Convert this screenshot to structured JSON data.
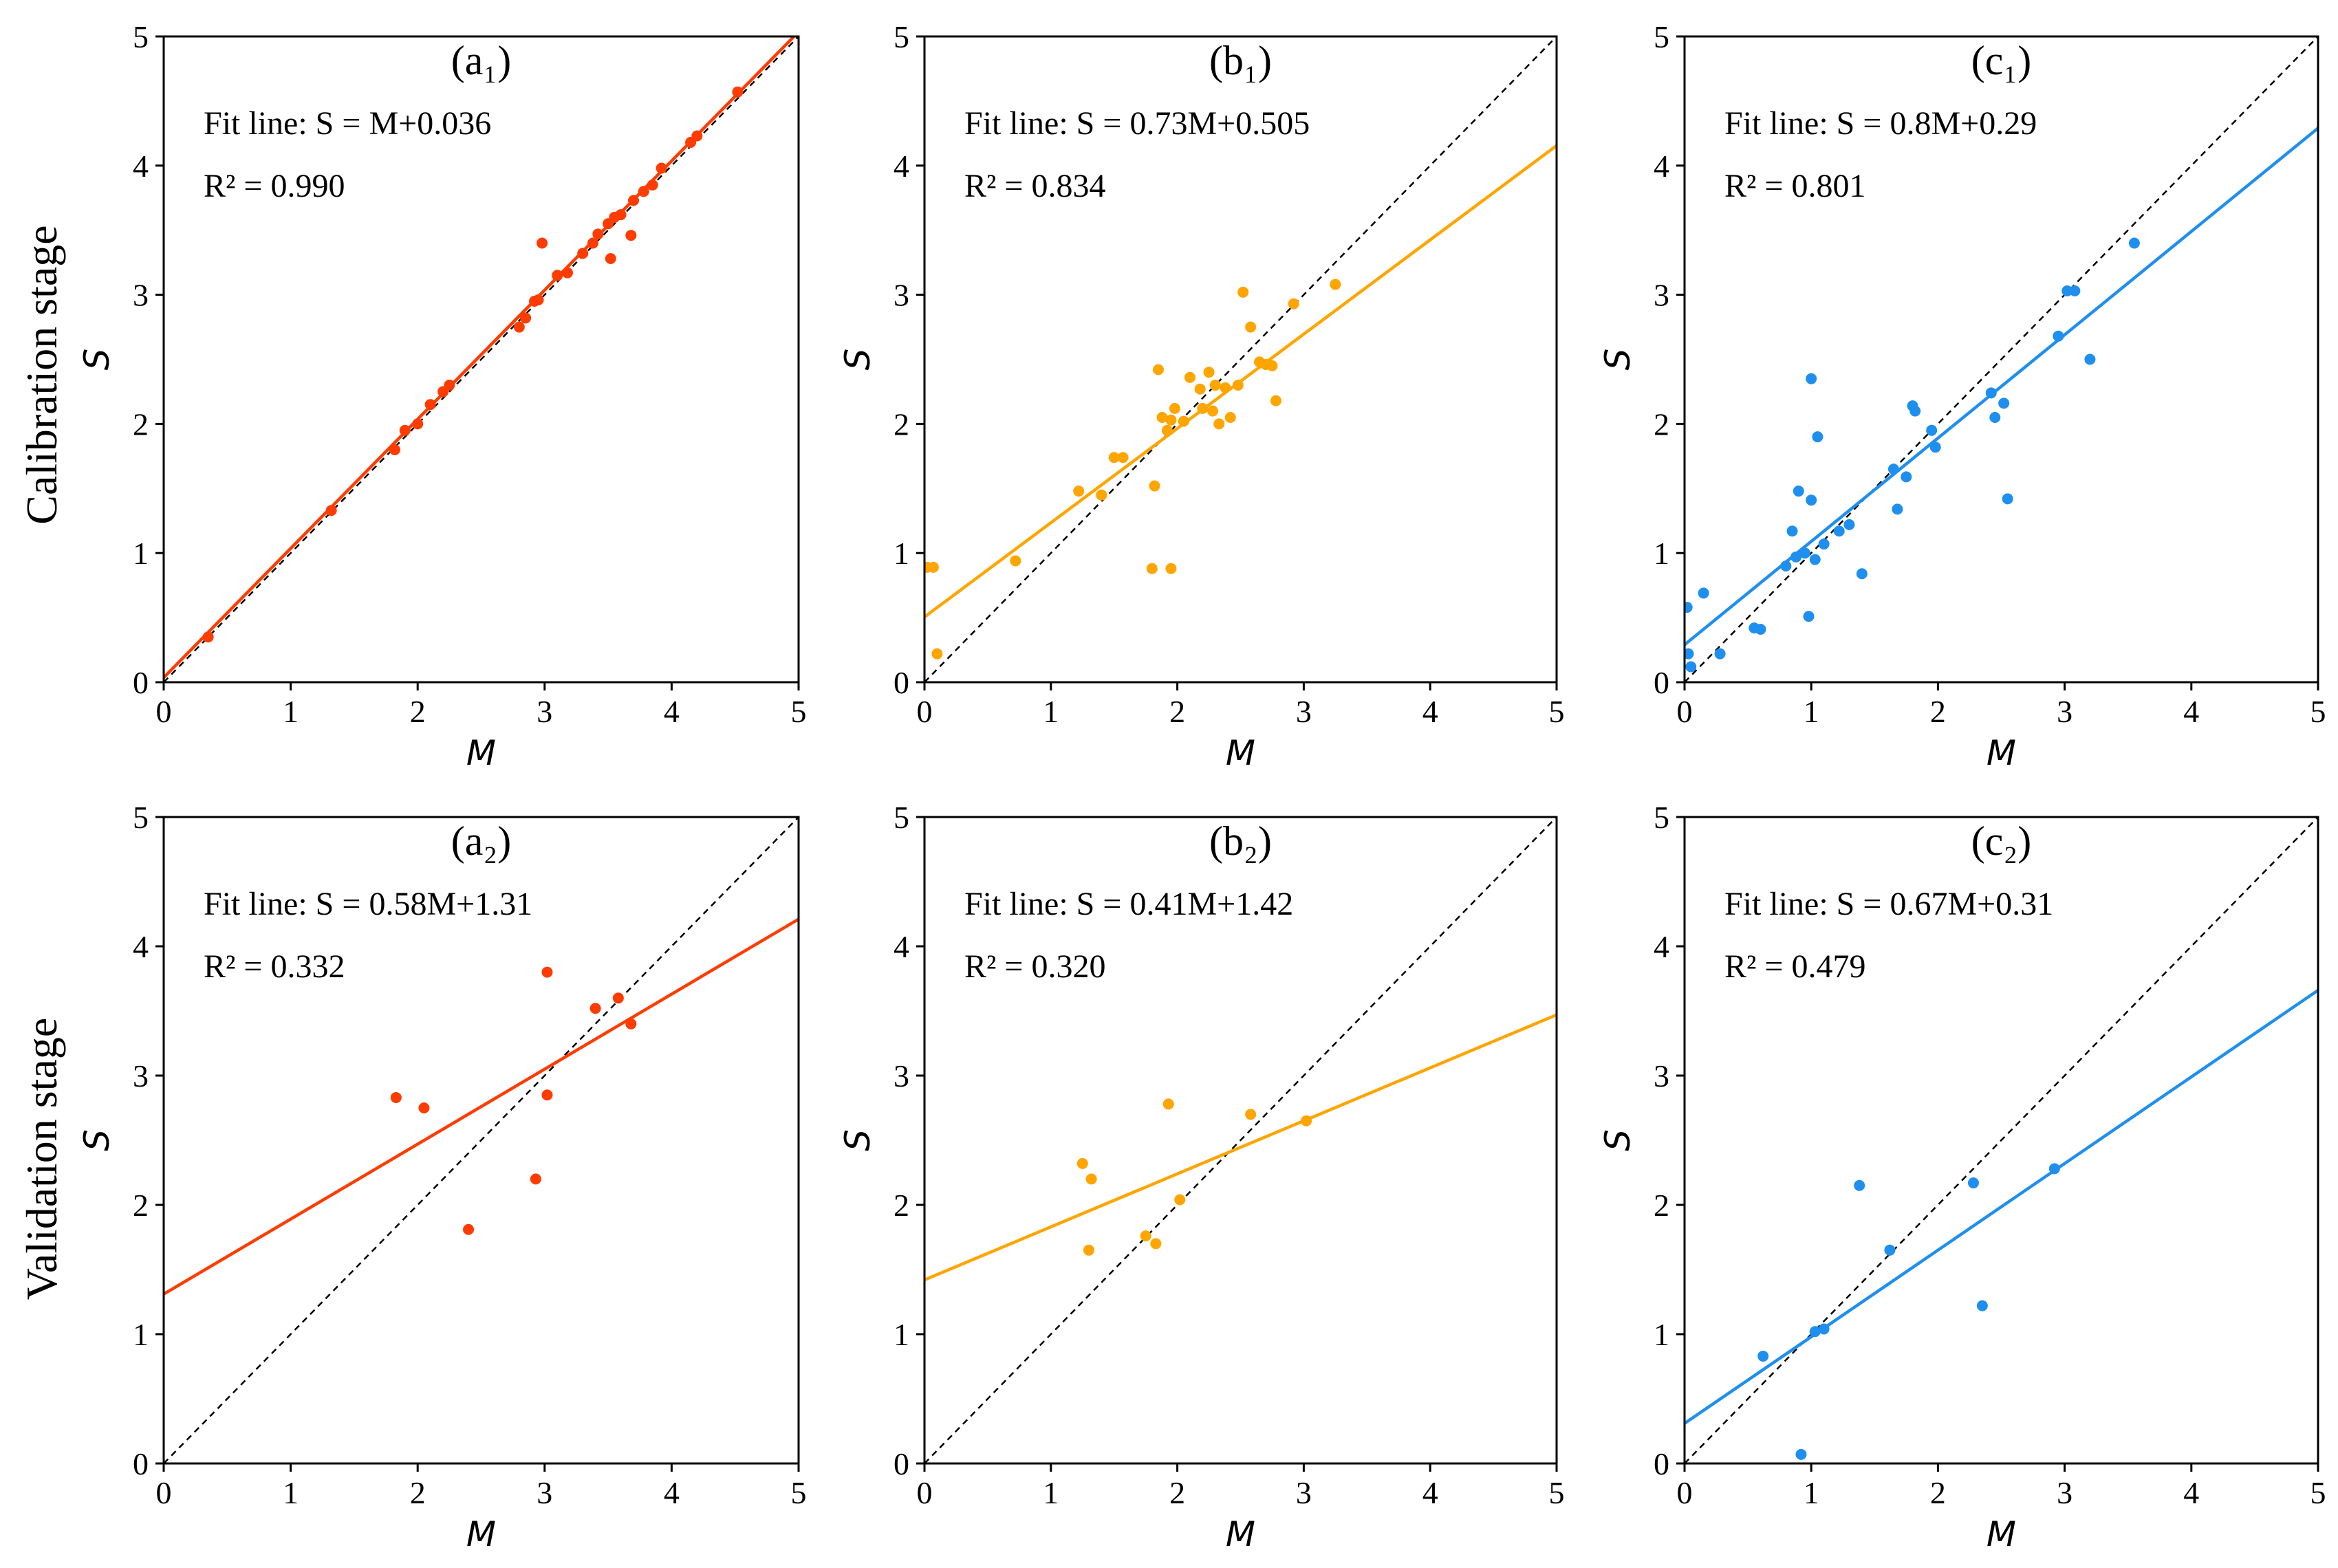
{
  "figure": {
    "row_labels": [
      "Calibration stage",
      "Validation stage"
    ],
    "identity_line": "dashed 1:1 line"
  },
  "chart_data": [
    {
      "type": "scatter",
      "title": "(a₁)",
      "xlabel": "M",
      "ylabel": "S",
      "xlim": [
        0,
        5
      ],
      "ylim": [
        0,
        5
      ],
      "xticks": [
        "0",
        "1",
        "2",
        "3",
        "4",
        "5"
      ],
      "yticks": [
        "0",
        "1",
        "2",
        "3",
        "4",
        "5"
      ],
      "color": "#ff3c00",
      "fit": {
        "slope": 1.0,
        "intercept": 0.036
      },
      "annotation": {
        "fit_line": "Fit line: S = M+0.036",
        "r2": "R² = 0.990"
      },
      "points": [
        [
          0.35,
          0.35
        ],
        [
          1.32,
          1.33
        ],
        [
          1.82,
          1.8
        ],
        [
          1.9,
          1.95
        ],
        [
          2.0,
          2.0
        ],
        [
          2.1,
          2.15
        ],
        [
          2.2,
          2.25
        ],
        [
          2.25,
          2.3
        ],
        [
          2.8,
          2.75
        ],
        [
          2.85,
          2.82
        ],
        [
          2.92,
          2.95
        ],
        [
          2.95,
          2.96
        ],
        [
          2.98,
          3.4
        ],
        [
          3.1,
          3.15
        ],
        [
          3.18,
          3.17
        ],
        [
          3.3,
          3.32
        ],
        [
          3.38,
          3.4
        ],
        [
          3.42,
          3.47
        ],
        [
          3.5,
          3.55
        ],
        [
          3.55,
          3.6
        ],
        [
          3.52,
          3.28
        ],
        [
          3.6,
          3.62
        ],
        [
          3.68,
          3.46
        ],
        [
          3.7,
          3.73
        ],
        [
          3.78,
          3.8
        ],
        [
          3.85,
          3.85
        ],
        [
          3.92,
          3.98
        ],
        [
          4.15,
          4.18
        ],
        [
          4.2,
          4.23
        ],
        [
          4.52,
          4.57
        ]
      ]
    },
    {
      "type": "scatter",
      "title": "(b₁)",
      "xlabel": "M",
      "ylabel": "S",
      "xlim": [
        0,
        5
      ],
      "ylim": [
        0,
        5
      ],
      "xticks": [
        "0",
        "1",
        "2",
        "3",
        "4",
        "5"
      ],
      "yticks": [
        "0",
        "1",
        "2",
        "3",
        "4",
        "5"
      ],
      "color": "#ffa500",
      "fit": {
        "slope": 0.73,
        "intercept": 0.505
      },
      "annotation": {
        "fit_line": "Fit line: S = 0.73M+0.505",
        "r2": "R² = 0.834"
      },
      "points": [
        [
          0.02,
          0.89
        ],
        [
          0.07,
          0.89
        ],
        [
          0.1,
          0.22
        ],
        [
          0.72,
          0.94
        ],
        [
          1.22,
          1.48
        ],
        [
          1.4,
          1.45
        ],
        [
          1.5,
          1.74
        ],
        [
          1.57,
          1.74
        ],
        [
          1.8,
          0.88
        ],
        [
          1.82,
          1.52
        ],
        [
          1.85,
          2.42
        ],
        [
          1.88,
          2.05
        ],
        [
          1.92,
          1.95
        ],
        [
          1.95,
          2.03
        ],
        [
          1.95,
          0.88
        ],
        [
          1.98,
          2.12
        ],
        [
          2.05,
          2.02
        ],
        [
          2.1,
          2.36
        ],
        [
          2.18,
          2.27
        ],
        [
          2.2,
          2.12
        ],
        [
          2.25,
          2.4
        ],
        [
          2.28,
          2.1
        ],
        [
          2.3,
          2.3
        ],
        [
          2.33,
          2.0
        ],
        [
          2.38,
          2.28
        ],
        [
          2.42,
          2.05
        ],
        [
          2.48,
          2.3
        ],
        [
          2.52,
          3.02
        ],
        [
          2.58,
          2.75
        ],
        [
          2.65,
          2.48
        ],
        [
          2.7,
          2.46
        ],
        [
          2.75,
          2.45
        ],
        [
          2.78,
          2.18
        ],
        [
          2.92,
          2.93
        ],
        [
          3.25,
          3.08
        ]
      ]
    },
    {
      "type": "scatter",
      "title": "(c₁)",
      "xlabel": "M",
      "ylabel": "S",
      "xlim": [
        0,
        5
      ],
      "ylim": [
        0,
        5
      ],
      "xticks": [
        "0",
        "1",
        "2",
        "3",
        "4",
        "5"
      ],
      "yticks": [
        "0",
        "1",
        "2",
        "3",
        "4",
        "5"
      ],
      "color": "#1f8fef",
      "fit": {
        "slope": 0.8,
        "intercept": 0.29
      },
      "annotation": {
        "fit_line": "Fit line: S = 0.8M+0.29",
        "r2": "R² = 0.801"
      },
      "points": [
        [
          0.02,
          0.58
        ],
        [
          0.03,
          0.22
        ],
        [
          0.05,
          0.12
        ],
        [
          0.15,
          0.69
        ],
        [
          0.28,
          0.22
        ],
        [
          0.55,
          0.42
        ],
        [
          0.6,
          0.41
        ],
        [
          0.8,
          0.9
        ],
        [
          0.85,
          1.17
        ],
        [
          0.88,
          0.97
        ],
        [
          0.9,
          1.48
        ],
        [
          0.95,
          1.0
        ],
        [
          0.98,
          0.51
        ],
        [
          1.0,
          1.41
        ],
        [
          1.0,
          2.35
        ],
        [
          1.03,
          0.95
        ],
        [
          1.05,
          1.9
        ],
        [
          1.1,
          1.07
        ],
        [
          1.22,
          1.17
        ],
        [
          1.3,
          1.22
        ],
        [
          1.4,
          0.84
        ],
        [
          1.65,
          1.65
        ],
        [
          1.68,
          1.34
        ],
        [
          1.75,
          1.59
        ],
        [
          1.8,
          2.14
        ],
        [
          1.82,
          2.1
        ],
        [
          1.95,
          1.95
        ],
        [
          1.98,
          1.82
        ],
        [
          2.42,
          2.24
        ],
        [
          2.45,
          2.05
        ],
        [
          2.52,
          2.16
        ],
        [
          2.55,
          1.42
        ],
        [
          2.95,
          2.68
        ],
        [
          3.02,
          3.03
        ],
        [
          3.08,
          3.03
        ],
        [
          3.2,
          2.5
        ],
        [
          3.55,
          3.4
        ]
      ]
    },
    {
      "type": "scatter",
      "title": "(a₂)",
      "xlabel": "M",
      "ylabel": "S",
      "xlim": [
        0,
        5
      ],
      "ylim": [
        0,
        5
      ],
      "xticks": [
        "0",
        "1",
        "2",
        "3",
        "4",
        "5"
      ],
      "yticks": [
        "0",
        "1",
        "2",
        "3",
        "4",
        "5"
      ],
      "color": "#ff3c00",
      "fit": {
        "slope": 0.58,
        "intercept": 1.31
      },
      "annotation": {
        "fit_line": "Fit line: S = 0.58M+1.31",
        "r2": "R² = 0.332"
      },
      "points": [
        [
          1.83,
          2.83
        ],
        [
          2.05,
          2.75
        ],
        [
          2.4,
          1.81
        ],
        [
          2.93,
          2.2
        ],
        [
          3.02,
          2.85
        ],
        [
          3.02,
          3.8
        ],
        [
          3.4,
          3.52
        ],
        [
          3.58,
          3.6
        ],
        [
          3.68,
          3.4
        ]
      ]
    },
    {
      "type": "scatter",
      "title": "(b₂)",
      "xlabel": "M",
      "ylabel": "S",
      "xlim": [
        0,
        5
      ],
      "ylim": [
        0,
        5
      ],
      "xticks": [
        "0",
        "1",
        "2",
        "3",
        "4",
        "5"
      ],
      "yticks": [
        "0",
        "1",
        "2",
        "3",
        "4",
        "5"
      ],
      "color": "#ffa500",
      "fit": {
        "slope": 0.41,
        "intercept": 1.42
      },
      "annotation": {
        "fit_line": "Fit line: S = 0.41M+1.42",
        "r2": "R² = 0.320"
      },
      "points": [
        [
          1.25,
          2.32
        ],
        [
          1.3,
          1.65
        ],
        [
          1.32,
          2.2
        ],
        [
          1.75,
          1.76
        ],
        [
          1.83,
          1.7
        ],
        [
          1.93,
          2.78
        ],
        [
          2.02,
          2.04
        ],
        [
          2.58,
          2.7
        ],
        [
          3.02,
          2.65
        ]
      ]
    },
    {
      "type": "scatter",
      "title": "(c₂)",
      "xlabel": "M",
      "ylabel": "S",
      "xlim": [
        0,
        5
      ],
      "ylim": [
        0,
        5
      ],
      "xticks": [
        "0",
        "1",
        "2",
        "3",
        "4",
        "5"
      ],
      "yticks": [
        "0",
        "1",
        "2",
        "3",
        "4",
        "5"
      ],
      "color": "#1f8fef",
      "fit": {
        "slope": 0.67,
        "intercept": 0.31
      },
      "annotation": {
        "fit_line": "Fit line: S = 0.67M+0.31",
        "r2": "R² = 0.479"
      },
      "points": [
        [
          0.62,
          0.83
        ],
        [
          0.92,
          0.07
        ],
        [
          1.03,
          1.02
        ],
        [
          1.1,
          1.04
        ],
        [
          1.38,
          2.15
        ],
        [
          1.62,
          1.65
        ],
        [
          2.28,
          2.17
        ],
        [
          2.35,
          1.22
        ],
        [
          2.92,
          2.28
        ]
      ]
    }
  ]
}
